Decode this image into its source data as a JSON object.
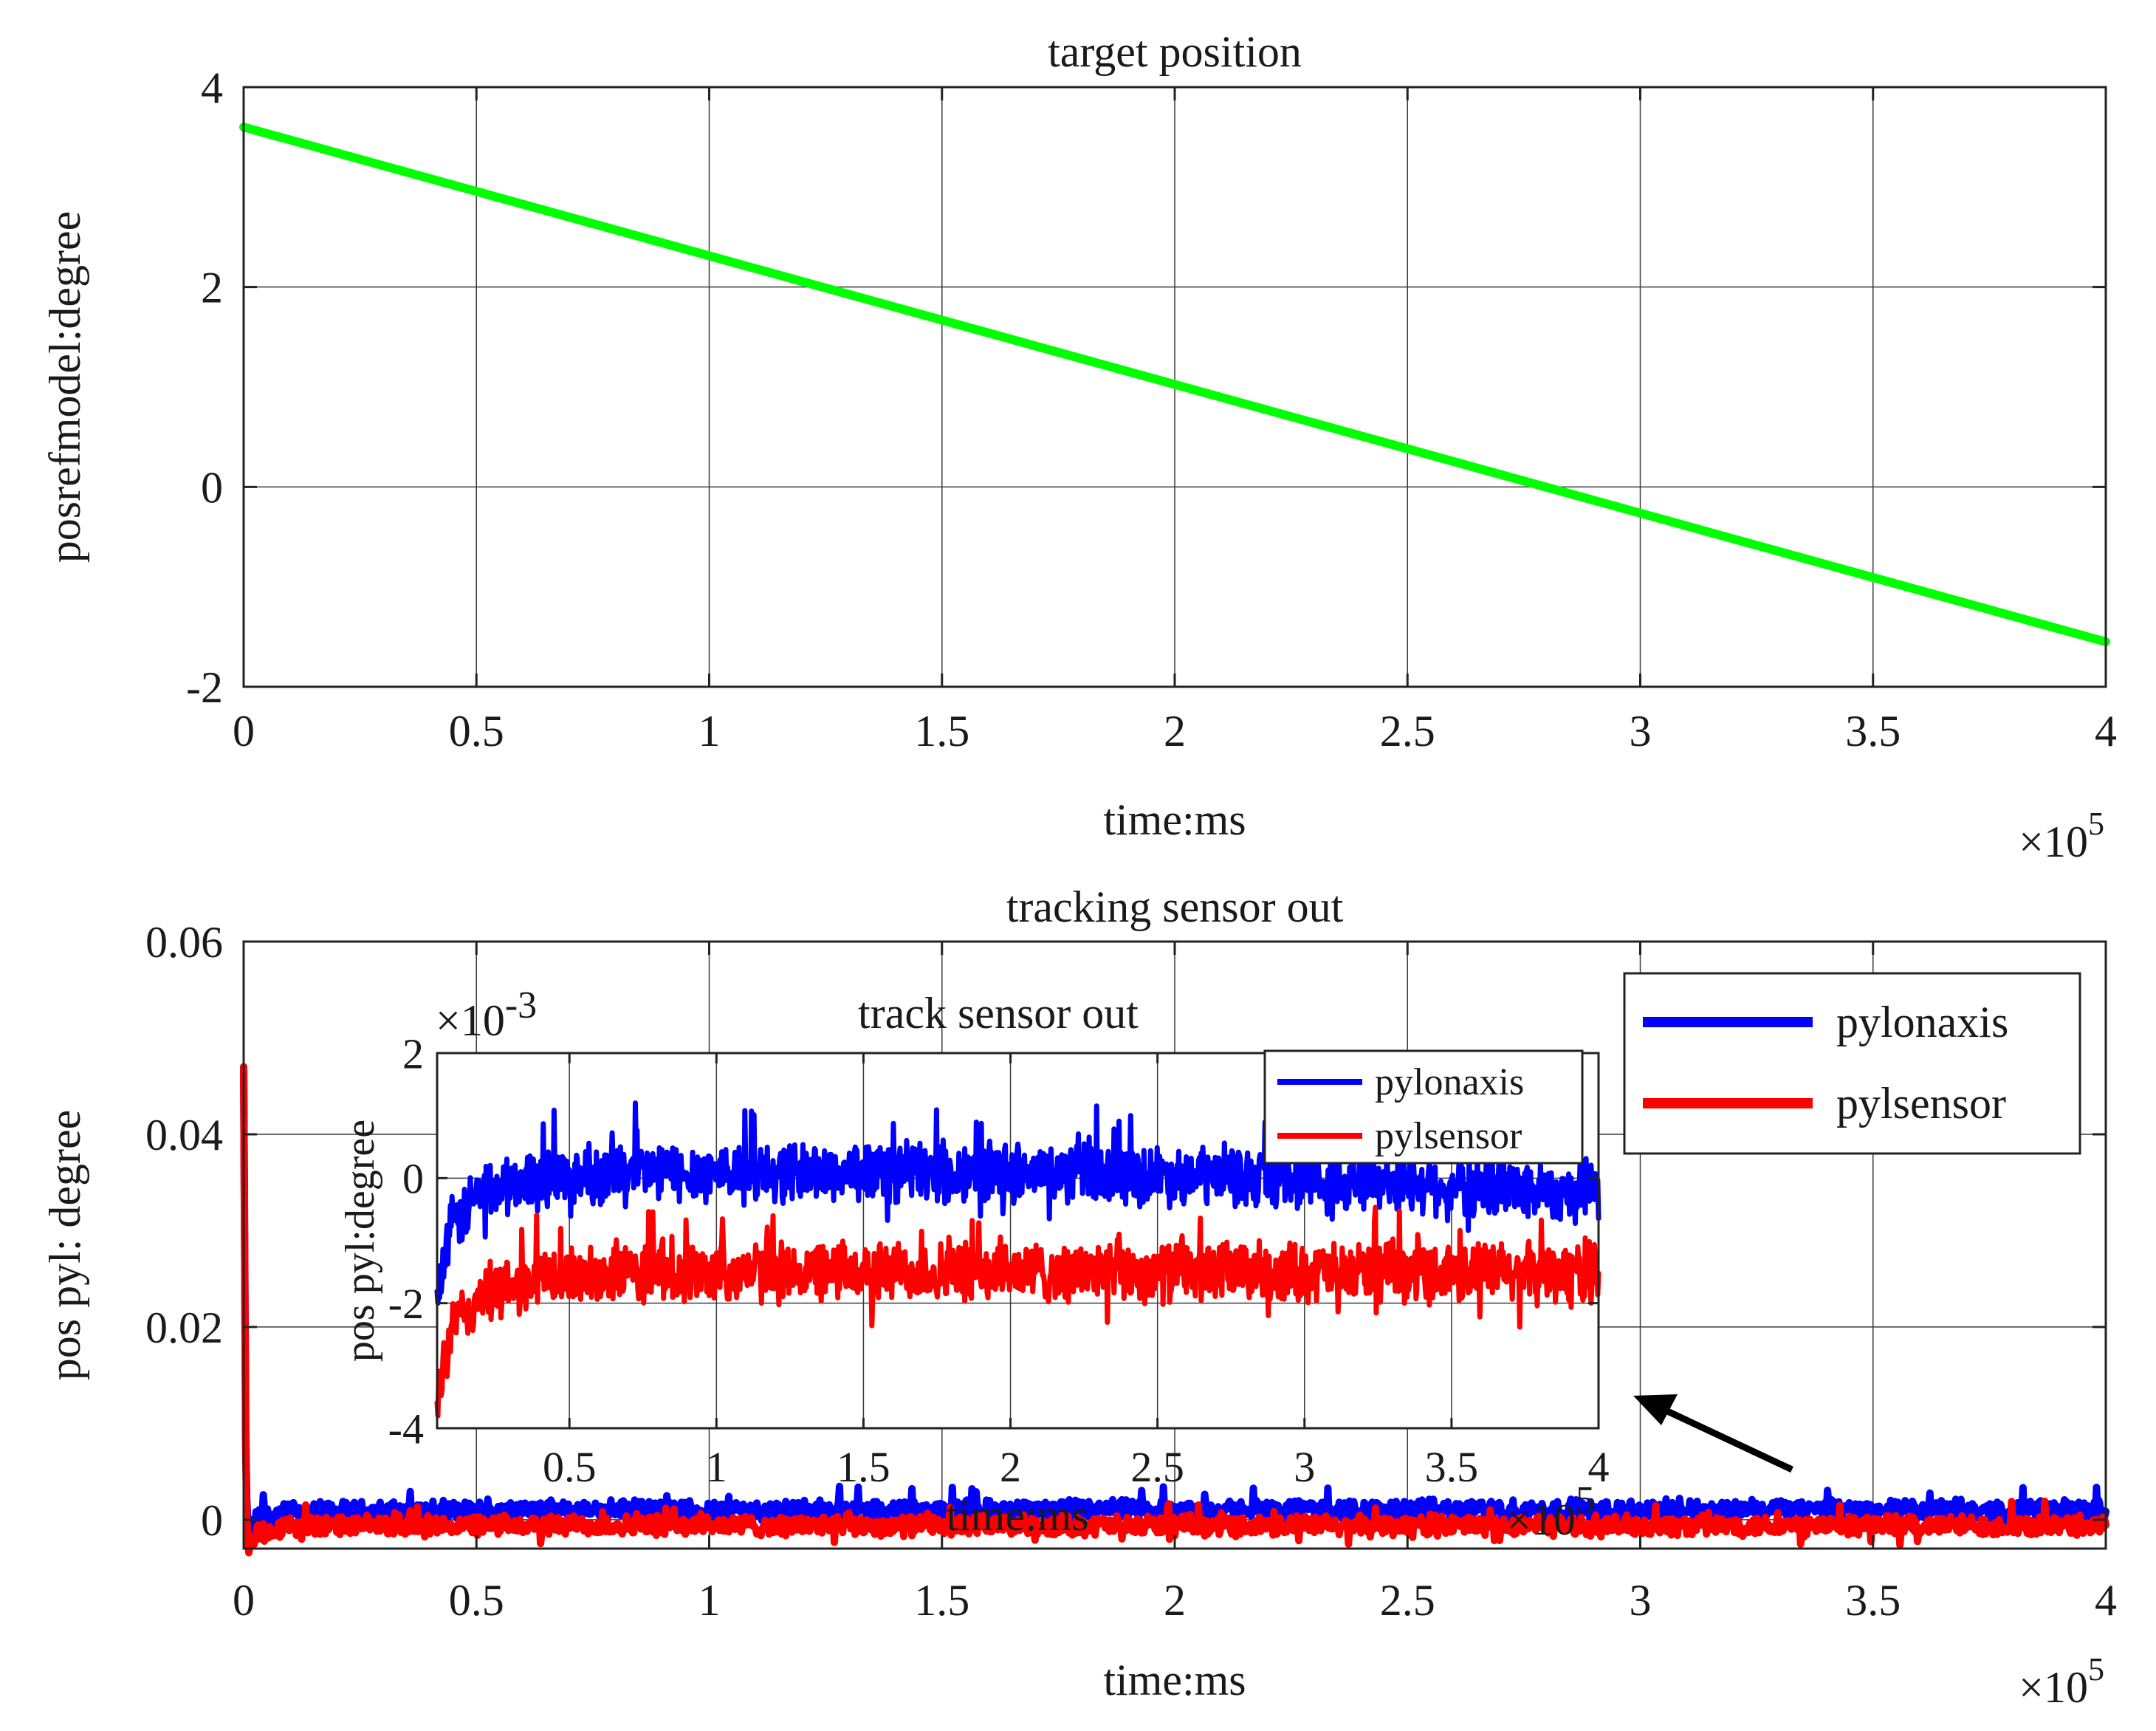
{
  "chart_data": [
    {
      "type": "line",
      "title": "target position",
      "xlabel": "time:ms",
      "ylabel": "posrefmodel:degree",
      "x_multiplier": "×10⁵",
      "x_multiplier_base": "×10",
      "x_multiplier_exp": "5",
      "xlim": [
        0,
        4
      ],
      "ylim": [
        -2,
        4
      ],
      "xticks": [
        0,
        0.5,
        1,
        1.5,
        2,
        2.5,
        3,
        3.5,
        4
      ],
      "xtick_labels": [
        "0",
        "0.5",
        "1",
        "1.5",
        "2",
        "2.5",
        "3",
        "3.5",
        "4"
      ],
      "yticks": [
        -2,
        0,
        2,
        4
      ],
      "ytick_labels": [
        "-2",
        "0",
        "2",
        "4"
      ],
      "grid": true,
      "series": [
        {
          "color": "#00ff00",
          "x": [
            0,
            4
          ],
          "y": [
            3.6,
            -1.55
          ]
        }
      ]
    },
    {
      "type": "line",
      "title": "tracking sensor out",
      "xlabel": "time:ms",
      "ylabel": "pos pyl: degree",
      "x_multiplier": "×10⁵",
      "x_multiplier_base": "×10",
      "x_multiplier_exp": "5",
      "xlim": [
        0,
        4
      ],
      "ylim": [
        -0.003,
        0.06
      ],
      "xticks": [
        0,
        0.5,
        1,
        1.5,
        2,
        2.5,
        3,
        3.5,
        4
      ],
      "xtick_labels": [
        "0",
        "0.5",
        "1",
        "1.5",
        "2",
        "2.5",
        "3",
        "3.5",
        "4"
      ],
      "yticks": [
        0,
        0.02,
        0.04,
        0.06
      ],
      "ytick_labels": [
        "0",
        "0.02",
        "0.04",
        "0.06"
      ],
      "grid": true,
      "legend": "top-right",
      "series": [
        {
          "name": "pylonaxis",
          "color": "#0000ff",
          "x": [
            0,
            0.005,
            0.01,
            0.03,
            0.1,
            0.5,
            1,
            2,
            3,
            4
          ],
          "y": [
            0.047,
            0.004,
            -0.0015,
            0.0003,
            0.0008,
            0.0009,
            0.001,
            0.001,
            0.001,
            0.001
          ],
          "noise": 0.0012
        },
        {
          "name": "pylsensor",
          "color": "#ff0000",
          "x": [
            0,
            0.005,
            0.01,
            0.03,
            0.1,
            0.5,
            1,
            2,
            3,
            4
          ],
          "y": [
            0.047,
            0.002,
            -0.003,
            -0.0012,
            -0.0007,
            -0.0006,
            -0.0006,
            -0.0006,
            -0.0006,
            -0.0006
          ],
          "noise": 0.0012
        }
      ]
    },
    {
      "type": "line",
      "title": "track sensor out",
      "xlabel": "time:ms",
      "ylabel": "pos pyl:degree",
      "x_multiplier": "×10⁵",
      "x_multiplier_base": "×10",
      "x_multiplier_exp": "5",
      "y_multiplier": "×10⁻³",
      "y_multiplier_base": "×10",
      "y_multiplier_exp": "-3",
      "xlim": [
        0.05,
        4
      ],
      "ylim": [
        -4,
        2
      ],
      "xticks": [
        0.5,
        1,
        1.5,
        2,
        2.5,
        3,
        3.5,
        4
      ],
      "xtick_labels": [
        "0.5",
        "1",
        "1.5",
        "2",
        "2.5",
        "3",
        "3.5",
        "4"
      ],
      "yticks": [
        -4,
        -2,
        0,
        2
      ],
      "ytick_labels": [
        "-4",
        "-2",
        "0",
        "2"
      ],
      "grid": true,
      "legend": "top-right",
      "series": [
        {
          "name": "pylonaxis",
          "color": "#0000ff",
          "x": [
            0.05,
            0.1,
            0.2,
            0.4,
            0.7,
            1,
            2,
            3,
            4
          ],
          "y": [
            -1.8,
            -0.8,
            -0.2,
            0.0,
            0.1,
            0.1,
            0.1,
            0.0,
            -0.2
          ],
          "noise": 0.55
        },
        {
          "name": "pylsensor",
          "color": "#ff0000",
          "x": [
            0.05,
            0.1,
            0.2,
            0.4,
            0.7,
            1,
            2,
            3,
            4
          ],
          "y": [
            -3.5,
            -2.4,
            -1.9,
            -1.6,
            -1.5,
            -1.5,
            -1.5,
            -1.5,
            -1.5
          ],
          "noise": 0.55
        }
      ]
    }
  ]
}
